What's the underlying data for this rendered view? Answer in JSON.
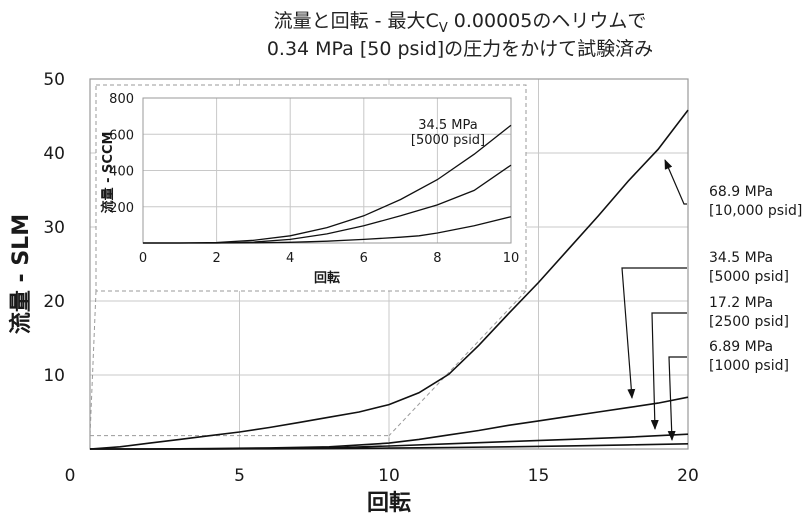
{
  "title": {
    "line1_prefix": "流量と回転 - 最大C",
    "line1_sub": "V",
    "line1_suffix": " 0.00005のヘリウムで",
    "line2": "0.34 MPa [50 psid]の圧力をかけて試験済み"
  },
  "colors": {
    "curve": "#111111",
    "grid": "#c8c8c8",
    "frame": "#9a9a9a",
    "zoom": "#9a9a9a"
  },
  "chart_data": [
    {
      "type": "line",
      "xlabel": "回転",
      "ylabel": "流量 - SLM",
      "xlim": [
        0,
        20
      ],
      "ylim": [
        0,
        50
      ],
      "xticks": [
        "0",
        "5",
        "10",
        "15",
        "20"
      ],
      "yticks": [
        "10",
        "20",
        "30",
        "40",
        "50"
      ],
      "grid": true,
      "series": [
        {
          "name": "68.9 MPa [10,000 psid]",
          "label_lines": [
            "68.9 MPa",
            "[10,000 psid]"
          ],
          "x": [
            0,
            1,
            2,
            3,
            4,
            5,
            6,
            7,
            8,
            9,
            10,
            11,
            12,
            13,
            14,
            15,
            16,
            17,
            18,
            19,
            20
          ],
          "y": [
            0,
            0.3,
            0.8,
            1.3,
            1.8,
            2.3,
            2.9,
            3.6,
            4.3,
            5.0,
            6.0,
            7.6,
            10.1,
            14.0,
            18.3,
            22.5,
            27.0,
            31.5,
            36.2,
            40.5,
            45.8
          ]
        },
        {
          "name": "34.5 MPa [5000 psid]",
          "label_lines": [
            "34.5 MPa",
            "[5000 psid]"
          ],
          "x": [
            0,
            2,
            4,
            6,
            8,
            10,
            11,
            12,
            13,
            14,
            15,
            16,
            17,
            18,
            19,
            20
          ],
          "y": [
            0,
            0,
            0.05,
            0.15,
            0.3,
            0.8,
            1.3,
            1.9,
            2.5,
            3.2,
            3.8,
            4.4,
            5.0,
            5.6,
            6.2,
            7.0
          ]
        },
        {
          "name": "17.2 MPa [2500 psid]",
          "label_lines": [
            "17.2 MPa",
            "[2500 psid]"
          ],
          "x": [
            0,
            2,
            4,
            6,
            8,
            10,
            12,
            14,
            16,
            18,
            20
          ],
          "y": [
            0,
            0,
            0.02,
            0.07,
            0.15,
            0.4,
            0.7,
            1.0,
            1.3,
            1.6,
            2.0
          ]
        },
        {
          "name": "6.89 MPa [1000 psid]",
          "label_lines": [
            "6.89 MPa",
            "[1000 psid]"
          ],
          "x": [
            0,
            2,
            4,
            6,
            8,
            10,
            12,
            14,
            16,
            18,
            20
          ],
          "y": [
            0,
            0,
            0.01,
            0.03,
            0.06,
            0.12,
            0.2,
            0.3,
            0.42,
            0.55,
            0.7
          ]
        }
      ]
    },
    {
      "type": "line",
      "xlabel": "回転",
      "ylabel": "流量 - SCCM",
      "xlim": [
        0,
        10
      ],
      "ylim": [
        0,
        800
      ],
      "xticks": [
        "0",
        "2",
        "4",
        "6",
        "8",
        "10"
      ],
      "yticks": [
        "200",
        "400",
        "600",
        "800"
      ],
      "grid": true,
      "annotation_lines": [
        "34.5 MPa",
        "[5000 psid]"
      ],
      "series": [
        {
          "x": [
            0,
            1,
            2,
            3,
            4,
            5,
            6,
            7,
            8,
            9,
            10
          ],
          "y": [
            0,
            0,
            3,
            15,
            40,
            85,
            150,
            240,
            350,
            490,
            650
          ]
        },
        {
          "x": [
            0,
            1,
            2,
            3,
            4,
            5,
            6,
            7,
            8,
            9,
            10
          ],
          "y": [
            0,
            0,
            0,
            5,
            20,
            50,
            95,
            150,
            210,
            290,
            430
          ]
        },
        {
          "x": [
            0,
            2,
            3,
            4,
            5,
            6,
            7,
            7.5,
            8,
            8.5,
            9,
            10
          ],
          "y": [
            0,
            0,
            1,
            4,
            10,
            20,
            32,
            40,
            55,
            75,
            95,
            145
          ]
        }
      ]
    }
  ]
}
